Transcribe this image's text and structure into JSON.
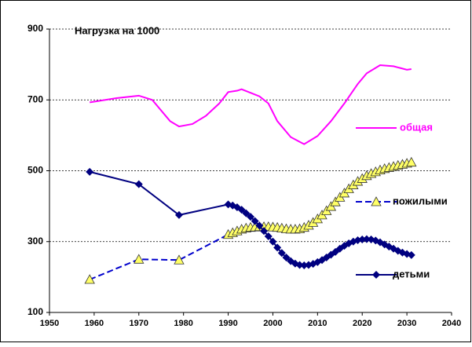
{
  "chart_data": {
    "type": "line",
    "title": "Нагрузка на 1000",
    "xlim": [
      1950,
      2040
    ],
    "xticks": [
      1950,
      1960,
      1970,
      1980,
      1990,
      2000,
      2010,
      2020,
      2030,
      2040
    ],
    "ylim": [
      100,
      900
    ],
    "yticks": [
      100,
      300,
      500,
      700,
      900
    ],
    "grid": true,
    "series": [
      {
        "name": "общая",
        "color": "#ff00ff",
        "marker": "none",
        "dashed": false,
        "x": [
          1959,
          1965,
          1970,
          1973,
          1977,
          1979,
          1982,
          1985,
          1988,
          1990,
          1992,
          1993,
          1995,
          1997,
          1999,
          2001,
          2004,
          2007,
          2010,
          2013,
          2016,
          2019,
          2021,
          2024,
          2027,
          2030,
          2031
        ],
        "values": [
          693,
          705,
          712,
          700,
          640,
          625,
          632,
          655,
          690,
          722,
          726,
          730,
          720,
          710,
          690,
          640,
          595,
          575,
          598,
          640,
          690,
          745,
          775,
          798,
          795,
          785,
          787
        ]
      },
      {
        "name": "пожилыми",
        "color": "#0000cc",
        "marker": "triangle",
        "dashed": true,
        "x": [
          1959,
          1970,
          1979,
          1990,
          1991,
          1992,
          1993,
          1994,
          1995,
          1996,
          1997,
          1998,
          1999,
          2000,
          2001,
          2002,
          2003,
          2004,
          2005,
          2006,
          2007,
          2008,
          2009,
          2010,
          2011,
          2012,
          2013,
          2014,
          2015,
          2016,
          2017,
          2018,
          2019,
          2020,
          2021,
          2022,
          2023,
          2024,
          2025,
          2026,
          2027,
          2028,
          2029,
          2030,
          2031
        ],
        "values": [
          193,
          250,
          248,
          320,
          325,
          330,
          335,
          338,
          340,
          341,
          342,
          342,
          342,
          341,
          340,
          338,
          336,
          335,
          335,
          336,
          340,
          346,
          354,
          364,
          375,
          387,
          399,
          412,
          425,
          437,
          449,
          460,
          470,
          478,
          486,
          492,
          497,
          502,
          506,
          509,
          512,
          515,
          518,
          521,
          524
        ]
      },
      {
        "name": "детьми",
        "color": "#000080",
        "marker": "diamond",
        "dashed": false,
        "x": [
          1959,
          1970,
          1979,
          1990,
          1991,
          1992,
          1993,
          1994,
          1995,
          1996,
          1997,
          1998,
          1999,
          2000,
          2001,
          2002,
          2003,
          2004,
          2005,
          2006,
          2007,
          2008,
          2009,
          2010,
          2011,
          2012,
          2013,
          2014,
          2015,
          2016,
          2017,
          2018,
          2019,
          2020,
          2021,
          2022,
          2023,
          2024,
          2025,
          2026,
          2027,
          2028,
          2029,
          2030,
          2031
        ],
        "values": [
          497,
          462,
          375,
          405,
          402,
          397,
          390,
          380,
          370,
          358,
          345,
          330,
          315,
          300,
          283,
          268,
          255,
          245,
          238,
          234,
          233,
          234,
          237,
          242,
          248,
          255,
          263,
          271,
          280,
          288,
          295,
          300,
          304,
          306,
          307,
          306,
          303,
          298,
          292,
          286,
          280,
          274,
          269,
          265,
          262
        ]
      }
    ]
  }
}
